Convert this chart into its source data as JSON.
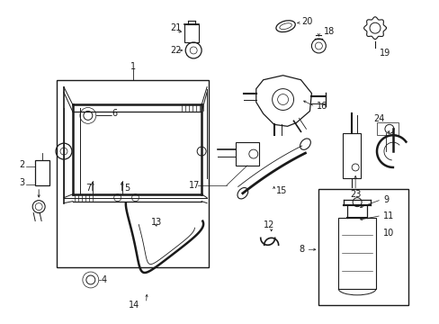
{
  "bg_color": "#ffffff",
  "line_color": "#1a1a1a",
  "fig_width": 4.89,
  "fig_height": 3.6,
  "dpi": 100
}
